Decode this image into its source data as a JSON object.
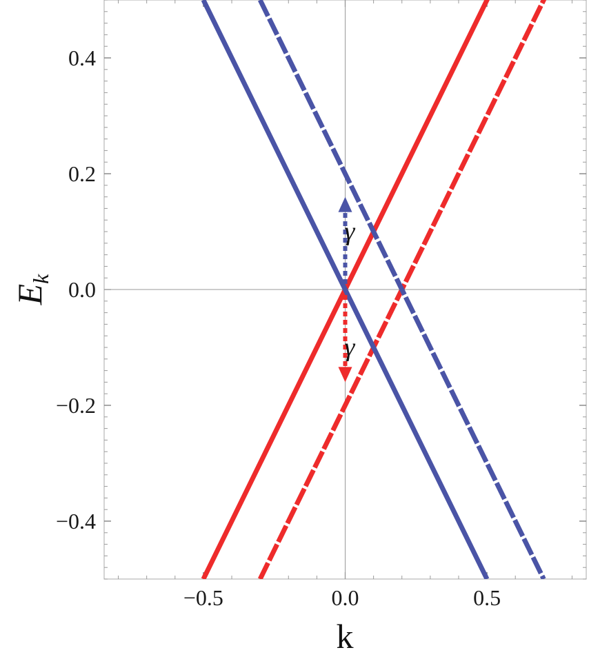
{
  "chart_data": {
    "type": "line",
    "xlim": [
      -0.85,
      0.85
    ],
    "ylim": [
      -0.5,
      0.5
    ],
    "x_ticks": [
      {
        "value": -0.5,
        "label": "−0.5"
      },
      {
        "value": 0.0,
        "label": "0.0"
      },
      {
        "value": 0.5,
        "label": "0.5"
      }
    ],
    "y_ticks": [
      {
        "value": 0.4,
        "label": "0.4"
      },
      {
        "value": 0.2,
        "label": "0.2"
      },
      {
        "value": 0.0,
        "label": "0.0"
      },
      {
        "value": -0.2,
        "label": "−0.2"
      },
      {
        "value": -0.4,
        "label": "−0.4"
      }
    ],
    "xlabel": "k",
    "ylabel_main": "E",
    "ylabel_sub": "k",
    "grid": false,
    "series": [
      {
        "color": "#ee2b2b",
        "dashed": false,
        "x": [
          -0.5,
          0.7
        ],
        "y": [
          -0.5,
          0.7
        ]
      },
      {
        "color": "#ee2b2b",
        "dashed": true,
        "x": [
          -0.3,
          0.9
        ],
        "y": [
          -0.5,
          0.7
        ]
      },
      {
        "color": "#4a54a6",
        "dashed": false,
        "x": [
          -0.5,
          0.5
        ],
        "y": [
          0.5,
          -0.5
        ]
      },
      {
        "color": "#4a54a6",
        "dashed": true,
        "x": [
          -0.3,
          0.7
        ],
        "y": [
          0.5,
          -0.5
        ]
      }
    ],
    "annotations": [
      {
        "symbol": "γ",
        "color": "#4a54a6",
        "arrow_from": [
          0.0,
          0.0
        ],
        "arrow_to": [
          0.0,
          0.16
        ],
        "label_at": [
          0.03,
          0.1
        ]
      },
      {
        "symbol": "γ",
        "color": "#ee2b2b",
        "arrow_from": [
          0.0,
          0.0
        ],
        "arrow_to": [
          0.0,
          -0.16
        ],
        "label_at": [
          0.03,
          -0.1
        ]
      }
    ]
  }
}
